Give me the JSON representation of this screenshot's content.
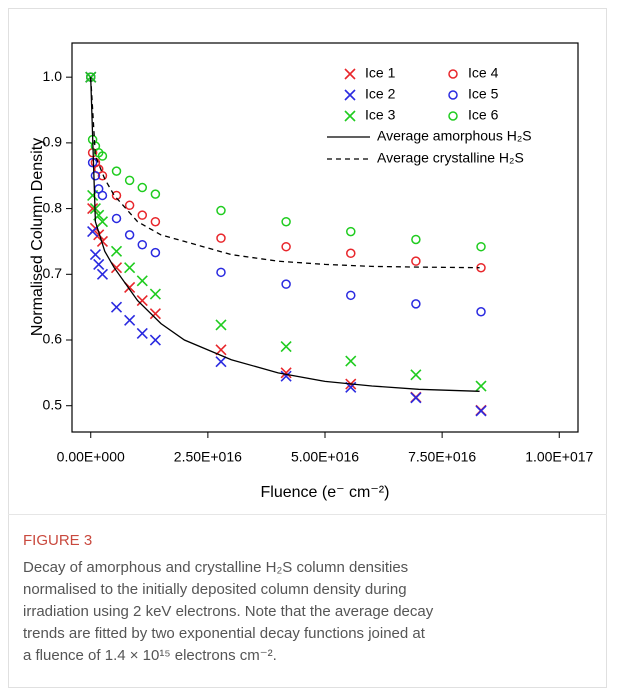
{
  "chart_data": {
    "type": "scatter",
    "x_label": "Fluence (e⁻ cm⁻²)",
    "y_label": "Normalised Column Density",
    "xlim": [
      -4000000000000000.0,
      1.04e+17
    ],
    "ylim": [
      0.46,
      1.052
    ],
    "xticks": [
      {
        "value": 0,
        "label": "0.00E+000"
      },
      {
        "value": 2.5e+16,
        "label": "2.50E+016"
      },
      {
        "value": 5e+16,
        "label": "5.00E+016"
      },
      {
        "value": 7.5e+16,
        "label": "7.50E+016"
      },
      {
        "value": 1e+17,
        "label": "1.00E+017"
      }
    ],
    "yticks": [
      0.5,
      0.6,
      0.7,
      0.8,
      0.9,
      {
        "value": 1.0,
        "label": "1.0"
      }
    ],
    "grid": false,
    "legend": "upper right",
    "x": [
      0,
      400000000000000.0,
      1000000000000000.0,
      1700000000000000.0,
      2500000000000000.0,
      5500000000000000.0,
      8300000000000000.0,
      1.1e+16,
      1.38e+16,
      2.78e+16,
      4.17e+16,
      5.55e+16,
      6.94e+16,
      8.33e+16
    ],
    "series": [
      {
        "name": "Ice 1",
        "color": "#e8262b",
        "marker": "x",
        "values": [
          1.0,
          0.8,
          0.77,
          0.76,
          0.75,
          0.71,
          0.68,
          0.66,
          0.64,
          0.585,
          0.55,
          0.533,
          0.513,
          0.493
        ]
      },
      {
        "name": "Ice 2",
        "color": "#2a2ae0",
        "marker": "x",
        "values": [
          1.0,
          0.765,
          0.73,
          0.715,
          0.7,
          0.65,
          0.63,
          0.61,
          0.6,
          0.567,
          0.545,
          0.528,
          0.512,
          0.492
        ]
      },
      {
        "name": "Ice 3",
        "color": "#1fcc1f",
        "marker": "x",
        "values": [
          1.0,
          0.82,
          0.8,
          0.79,
          0.78,
          0.735,
          0.71,
          0.69,
          0.67,
          0.623,
          0.59,
          0.568,
          0.547,
          0.53
        ]
      },
      {
        "name": "Ice 4",
        "color": "#e8262b",
        "marker": "o",
        "values": [
          1.0,
          0.885,
          0.87,
          0.86,
          0.85,
          0.82,
          0.805,
          0.79,
          0.78,
          0.755,
          0.742,
          0.732,
          0.72,
          0.71
        ]
      },
      {
        "name": "Ice 5",
        "color": "#2a2ae0",
        "marker": "o",
        "values": [
          1.0,
          0.87,
          0.85,
          0.83,
          0.82,
          0.785,
          0.76,
          0.745,
          0.733,
          0.703,
          0.685,
          0.668,
          0.655,
          0.643
        ]
      },
      {
        "name": "Ice 6",
        "color": "#1fcc1f",
        "marker": "o",
        "values": [
          1.0,
          0.905,
          0.895,
          0.885,
          0.88,
          0.857,
          0.843,
          0.832,
          0.822,
          0.797,
          0.78,
          0.765,
          0.753,
          0.742
        ]
      },
      {
        "name": "Average amorphous H₂S",
        "color": "#000000",
        "marker": "line",
        "style": "solid",
        "x": [
          0,
          1000000000000000.0,
          3000000000000000.0,
          5000000000000000.0,
          1e+16,
          1.5e+16,
          2e+16,
          3e+16,
          4e+16,
          5e+16,
          6e+16,
          7e+16,
          8.3e+16
        ],
        "values": [
          1.0,
          0.78,
          0.735,
          0.71,
          0.66,
          0.625,
          0.6,
          0.57,
          0.55,
          0.537,
          0.53,
          0.525,
          0.522
        ]
      },
      {
        "name": "Average crystalline H₂S",
        "color": "#000000",
        "marker": "line",
        "style": "dashed",
        "x": [
          0,
          1000000000000000.0,
          3000000000000000.0,
          5000000000000000.0,
          1e+16,
          1.5e+16,
          2e+16,
          3e+16,
          4e+16,
          5e+16,
          6e+16,
          7e+16,
          8.3e+16
        ],
        "values": [
          1.0,
          0.88,
          0.845,
          0.82,
          0.78,
          0.76,
          0.75,
          0.73,
          0.72,
          0.715,
          0.712,
          0.711,
          0.71
        ]
      }
    ]
  },
  "caption": {
    "label": "FIGURE 3",
    "lines": [
      "Decay of amorphous and crystalline H₂S column densities",
      "normalised to the initially deposited column density during",
      "irradiation using 2 keV electrons. Note that the average decay",
      "trends are fitted by two exponential decay functions joined at",
      "a fluence of 1.4 × 10¹⁵ electrons cm⁻²."
    ]
  }
}
